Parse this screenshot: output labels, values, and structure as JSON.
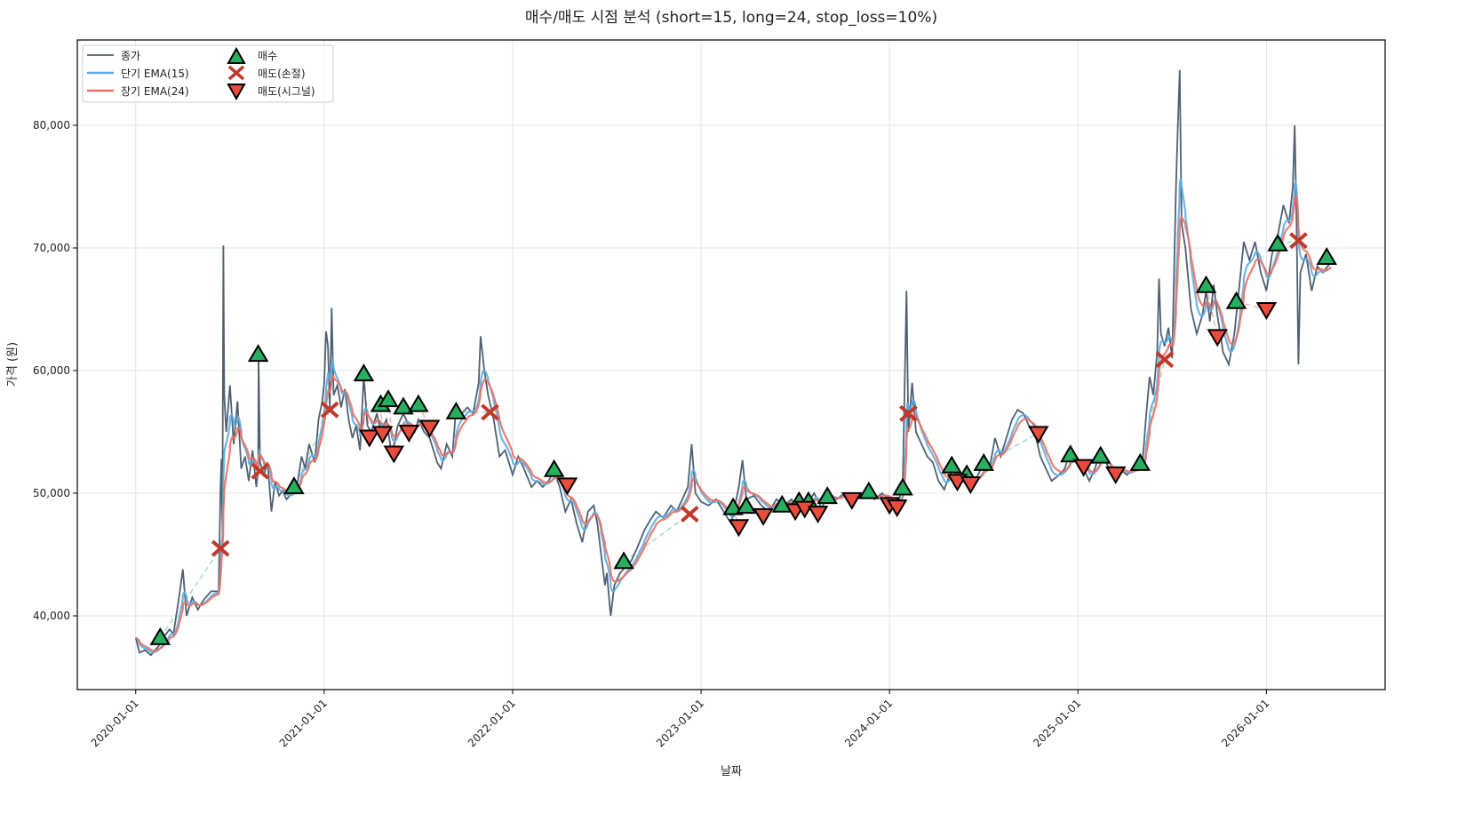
{
  "chart_data": {
    "type": "line",
    "title": "매수/매도 시점 분석 (short=15, long=24, stop_loss=10%)",
    "xlabel": "날짜",
    "ylabel": "가격 (원)",
    "x_unit": "decimal year",
    "xlim": [
      2019.69,
      2026.63
    ],
    "ylim": [
      33986,
      86957
    ],
    "grid": true,
    "legend_placement": "top-left",
    "x_ticks": [
      {
        "value": 2020,
        "label": "2020-01-01"
      },
      {
        "value": 2021,
        "label": "2021-01-01"
      },
      {
        "value": 2022,
        "label": "2022-01-01"
      },
      {
        "value": 2023,
        "label": "2023-01-01"
      },
      {
        "value": 2024,
        "label": "2024-01-01"
      },
      {
        "value": 2025,
        "label": "2025-01-01"
      },
      {
        "value": 2026,
        "label": "2026-01-01"
      }
    ],
    "y_ticks": [
      {
        "value": 40000,
        "label": "40,000"
      },
      {
        "value": 50000,
        "label": "50,000"
      },
      {
        "value": 60000,
        "label": "60,000"
      },
      {
        "value": 70000,
        "label": "70,000"
      },
      {
        "value": 80000,
        "label": "80,000"
      }
    ],
    "legend": {
      "close": "종가",
      "ema_short": "단기 EMA(15)",
      "ema_long": "장기 EMA(24)",
      "buy": "매수",
      "sell_stop": "매도(손절)",
      "sell_signal": "매도(시그널)"
    },
    "ema_spans": {
      "short": 15,
      "long": 24
    },
    "colors": {
      "close": "#4f6072",
      "ema_short": "#5dade2",
      "ema_long": "#ec7063",
      "buy": "#27ae60",
      "sell_stop": "#c0392b",
      "sell_signal": "#e74c3c",
      "trade_win": "#a9dfbf",
      "trade_loss": "#f5b7b1"
    },
    "close": [
      [
        2020.0,
        38200
      ],
      [
        2020.02,
        37000
      ],
      [
        2020.05,
        37200
      ],
      [
        2020.08,
        36800
      ],
      [
        2020.12,
        37500
      ],
      [
        2020.15,
        38300
      ],
      [
        2020.18,
        38900
      ],
      [
        2020.2,
        38500
      ],
      [
        2020.23,
        41500
      ],
      [
        2020.25,
        43800
      ],
      [
        2020.27,
        40000
      ],
      [
        2020.3,
        41500
      ],
      [
        2020.33,
        40500
      ],
      [
        2020.36,
        41300
      ],
      [
        2020.4,
        42000
      ],
      [
        2020.44,
        42000
      ],
      [
        2020.45,
        50500
      ],
      [
        2020.455,
        52800
      ],
      [
        2020.46,
        47000
      ],
      [
        2020.465,
        70200
      ],
      [
        2020.47,
        58000
      ],
      [
        2020.48,
        55000
      ],
      [
        2020.5,
        58800
      ],
      [
        2020.52,
        54000
      ],
      [
        2020.54,
        57500
      ],
      [
        2020.56,
        52000
      ],
      [
        2020.58,
        53000
      ],
      [
        2020.6,
        51000
      ],
      [
        2020.62,
        53500
      ],
      [
        2020.64,
        50500
      ],
      [
        2020.65,
        52000
      ],
      [
        2020.652,
        61000
      ],
      [
        2020.66,
        52500
      ],
      [
        2020.68,
        51500
      ],
      [
        2020.7,
        52500
      ],
      [
        2020.72,
        48500
      ],
      [
        2020.74,
        51000
      ],
      [
        2020.76,
        49800
      ],
      [
        2020.78,
        50200
      ],
      [
        2020.8,
        49500
      ],
      [
        2020.83,
        50000
      ],
      [
        2020.86,
        51000
      ],
      [
        2020.88,
        53000
      ],
      [
        2020.9,
        52000
      ],
      [
        2020.92,
        54000
      ],
      [
        2020.95,
        52500
      ],
      [
        2020.97,
        56000
      ],
      [
        2020.99,
        57500
      ],
      [
        2021.0,
        59000
      ],
      [
        2021.01,
        63200
      ],
      [
        2021.02,
        62000
      ],
      [
        2021.03,
        57000
      ],
      [
        2021.04,
        65100
      ],
      [
        2021.05,
        58000
      ],
      [
        2021.07,
        58800
      ],
      [
        2021.09,
        57000
      ],
      [
        2021.11,
        58500
      ],
      [
        2021.13,
        56000
      ],
      [
        2021.15,
        54500
      ],
      [
        2021.17,
        55500
      ],
      [
        2021.19,
        53500
      ],
      [
        2021.21,
        59500
      ],
      [
        2021.23,
        55500
      ],
      [
        2021.25,
        55000
      ],
      [
        2021.28,
        56500
      ],
      [
        2021.3,
        55000
      ],
      [
        2021.33,
        56000
      ],
      [
        2021.36,
        53000
      ],
      [
        2021.39,
        55500
      ],
      [
        2021.42,
        56500
      ],
      [
        2021.45,
        55500
      ],
      [
        2021.48,
        55000
      ],
      [
        2021.5,
        56000
      ],
      [
        2021.53,
        55000
      ],
      [
        2021.56,
        54500
      ],
      [
        2021.6,
        52500
      ],
      [
        2021.62,
        52000
      ],
      [
        2021.65,
        54000
      ],
      [
        2021.68,
        53000
      ],
      [
        2021.7,
        57000
      ],
      [
        2021.73,
        56500
      ],
      [
        2021.76,
        57000
      ],
      [
        2021.79,
        56500
      ],
      [
        2021.82,
        59000
      ],
      [
        2021.83,
        62800
      ],
      [
        2021.85,
        60000
      ],
      [
        2021.87,
        58000
      ],
      [
        2021.9,
        56000
      ],
      [
        2021.93,
        53000
      ],
      [
        2021.96,
        53500
      ],
      [
        2022.0,
        51500
      ],
      [
        2022.03,
        53000
      ],
      [
        2022.06,
        52000
      ],
      [
        2022.1,
        50500
      ],
      [
        2022.13,
        51000
      ],
      [
        2022.16,
        50500
      ],
      [
        2022.19,
        51000
      ],
      [
        2022.22,
        51800
      ],
      [
        2022.25,
        50500
      ],
      [
        2022.28,
        48500
      ],
      [
        2022.31,
        49500
      ],
      [
        2022.34,
        47500
      ],
      [
        2022.37,
        46000
      ],
      [
        2022.4,
        48500
      ],
      [
        2022.43,
        49000
      ],
      [
        2022.45,
        47500
      ],
      [
        2022.47,
        45000
      ],
      [
        2022.49,
        42500
      ],
      [
        2022.5,
        43500
      ],
      [
        2022.52,
        40000
      ],
      [
        2022.54,
        42500
      ],
      [
        2022.57,
        43500
      ],
      [
        2022.6,
        44000
      ],
      [
        2022.63,
        44500
      ],
      [
        2022.66,
        45500
      ],
      [
        2022.7,
        47000
      ],
      [
        2022.73,
        47800
      ],
      [
        2022.76,
        48500
      ],
      [
        2022.8,
        48000
      ],
      [
        2022.84,
        49000
      ],
      [
        2022.87,
        48500
      ],
      [
        2022.9,
        49500
      ],
      [
        2022.93,
        50500
      ],
      [
        2022.95,
        54000
      ],
      [
        2022.97,
        50000
      ],
      [
        2023.0,
        49300
      ],
      [
        2023.04,
        49000
      ],
      [
        2023.08,
        49500
      ],
      [
        2023.12,
        48500
      ],
      [
        2023.16,
        47500
      ],
      [
        2023.2,
        50500
      ],
      [
        2023.22,
        52700
      ],
      [
        2023.24,
        49500
      ],
      [
        2023.28,
        49800
      ],
      [
        2023.32,
        49000
      ],
      [
        2023.36,
        48500
      ],
      [
        2023.4,
        49500
      ],
      [
        2023.44,
        49000
      ],
      [
        2023.48,
        49500
      ],
      [
        2023.52,
        48500
      ],
      [
        2023.56,
        49000
      ],
      [
        2023.6,
        50000
      ],
      [
        2023.64,
        48800
      ],
      [
        2023.68,
        50000
      ],
      [
        2023.72,
        49500
      ],
      [
        2023.76,
        50000
      ],
      [
        2023.8,
        49500
      ],
      [
        2023.84,
        49800
      ],
      [
        2023.88,
        50000
      ],
      [
        2023.92,
        49500
      ],
      [
        2023.96,
        50000
      ],
      [
        2024.0,
        49500
      ],
      [
        2024.04,
        49000
      ],
      [
        2024.07,
        50500
      ],
      [
        2024.09,
        66500
      ],
      [
        2024.1,
        55000
      ],
      [
        2024.12,
        59000
      ],
      [
        2024.14,
        55000
      ],
      [
        2024.17,
        54000
      ],
      [
        2024.2,
        53000
      ],
      [
        2024.23,
        52500
      ],
      [
        2024.26,
        51000
      ],
      [
        2024.29,
        50300
      ],
      [
        2024.32,
        51500
      ],
      [
        2024.35,
        52000
      ],
      [
        2024.38,
        51000
      ],
      [
        2024.41,
        51500
      ],
      [
        2024.44,
        50500
      ],
      [
        2024.47,
        51500
      ],
      [
        2024.5,
        52500
      ],
      [
        2024.53,
        52000
      ],
      [
        2024.56,
        54500
      ],
      [
        2024.59,
        53000
      ],
      [
        2024.62,
        54500
      ],
      [
        2024.65,
        56000
      ],
      [
        2024.68,
        56800
      ],
      [
        2024.71,
        56500
      ],
      [
        2024.74,
        55500
      ],
      [
        2024.77,
        55000
      ],
      [
        2024.8,
        53000
      ],
      [
        2024.83,
        52000
      ],
      [
        2024.86,
        51000
      ],
      [
        2024.9,
        51500
      ],
      [
        2024.93,
        52000
      ],
      [
        2024.96,
        53500
      ],
      [
        2025.0,
        52500
      ],
      [
        2025.03,
        52000
      ],
      [
        2025.06,
        51000
      ],
      [
        2025.09,
        52000
      ],
      [
        2025.12,
        53500
      ],
      [
        2025.15,
        52500
      ],
      [
        2025.18,
        51500
      ],
      [
        2025.22,
        52000
      ],
      [
        2025.26,
        51500
      ],
      [
        2025.3,
        52000
      ],
      [
        2025.34,
        52000
      ],
      [
        2025.36,
        56000
      ],
      [
        2025.38,
        59500
      ],
      [
        2025.4,
        58000
      ],
      [
        2025.42,
        61500
      ],
      [
        2025.43,
        67500
      ],
      [
        2025.44,
        63000
      ],
      [
        2025.46,
        62000
      ],
      [
        2025.48,
        63500
      ],
      [
        2025.5,
        61000
      ],
      [
        2025.52,
        75000
      ],
      [
        2025.53,
        80000
      ],
      [
        2025.54,
        84500
      ],
      [
        2025.55,
        72000
      ],
      [
        2025.57,
        70000
      ],
      [
        2025.6,
        65000
      ],
      [
        2025.63,
        63000
      ],
      [
        2025.66,
        64500
      ],
      [
        2025.68,
        66500
      ],
      [
        2025.7,
        64000
      ],
      [
        2025.72,
        67000
      ],
      [
        2025.74,
        64500
      ],
      [
        2025.77,
        61500
      ],
      [
        2025.8,
        60500
      ],
      [
        2025.83,
        63000
      ],
      [
        2025.86,
        67500
      ],
      [
        2025.88,
        70500
      ],
      [
        2025.91,
        69000
      ],
      [
        2025.94,
        70500
      ],
      [
        2025.97,
        68000
      ],
      [
        2026.0,
        66500
      ],
      [
        2026.03,
        69500
      ],
      [
        2026.06,
        71000
      ],
      [
        2026.09,
        73500
      ],
      [
        2026.12,
        72000
      ],
      [
        2026.14,
        75000
      ],
      [
        2026.15,
        80000
      ],
      [
        2026.16,
        72000
      ],
      [
        2026.17,
        60500
      ],
      [
        2026.18,
        68000
      ],
      [
        2026.21,
        69500
      ],
      [
        2026.24,
        66500
      ],
      [
        2026.27,
        68500
      ],
      [
        2026.3,
        68000
      ],
      [
        2026.34,
        68800
      ]
    ],
    "buys": [
      [
        2020.13,
        38200
      ],
      [
        2020.65,
        61300
      ],
      [
        2020.84,
        50500
      ],
      [
        2021.21,
        59700
      ],
      [
        2021.3,
        57200
      ],
      [
        2021.34,
        57600
      ],
      [
        2021.42,
        57000
      ],
      [
        2021.5,
        57200
      ],
      [
        2021.7,
        56600
      ],
      [
        2022.22,
        51900
      ],
      [
        2022.59,
        44400
      ],
      [
        2023.17,
        48800
      ],
      [
        2023.24,
        48900
      ],
      [
        2023.43,
        49000
      ],
      [
        2023.52,
        49300
      ],
      [
        2023.57,
        49300
      ],
      [
        2023.67,
        49700
      ],
      [
        2023.89,
        50100
      ],
      [
        2024.07,
        50400
      ],
      [
        2024.33,
        52200
      ],
      [
        2024.41,
        51500
      ],
      [
        2024.5,
        52400
      ],
      [
        2024.96,
        53100
      ],
      [
        2025.12,
        53000
      ],
      [
        2025.33,
        52400
      ],
      [
        2025.68,
        66900
      ],
      [
        2025.84,
        65600
      ],
      [
        2026.06,
        70300
      ],
      [
        2026.32,
        69200
      ]
    ],
    "sells_stop_loss": [
      [
        2020.45,
        45500
      ],
      [
        2020.66,
        51800
      ],
      [
        2021.03,
        56800
      ],
      [
        2021.88,
        56600
      ],
      [
        2022.94,
        48300
      ],
      [
        2024.1,
        56500
      ],
      [
        2025.46,
        60900
      ],
      [
        2026.17,
        70600
      ]
    ],
    "sells_signal": [
      [
        2021.24,
        54600
      ],
      [
        2021.31,
        54900
      ],
      [
        2021.37,
        53300
      ],
      [
        2021.45,
        55000
      ],
      [
        2021.56,
        55400
      ],
      [
        2022.29,
        50700
      ],
      [
        2023.2,
        47300
      ],
      [
        2023.33,
        48200
      ],
      [
        2023.5,
        48600
      ],
      [
        2023.55,
        48800
      ],
      [
        2023.62,
        48400
      ],
      [
        2023.8,
        49500
      ],
      [
        2024.0,
        49100
      ],
      [
        2024.04,
        48900
      ],
      [
        2024.36,
        51000
      ],
      [
        2024.43,
        50800
      ],
      [
        2024.79,
        54900
      ],
      [
        2025.03,
        52200
      ],
      [
        2025.2,
        51600
      ],
      [
        2025.74,
        62800
      ],
      [
        2026.0,
        65000
      ]
    ]
  }
}
